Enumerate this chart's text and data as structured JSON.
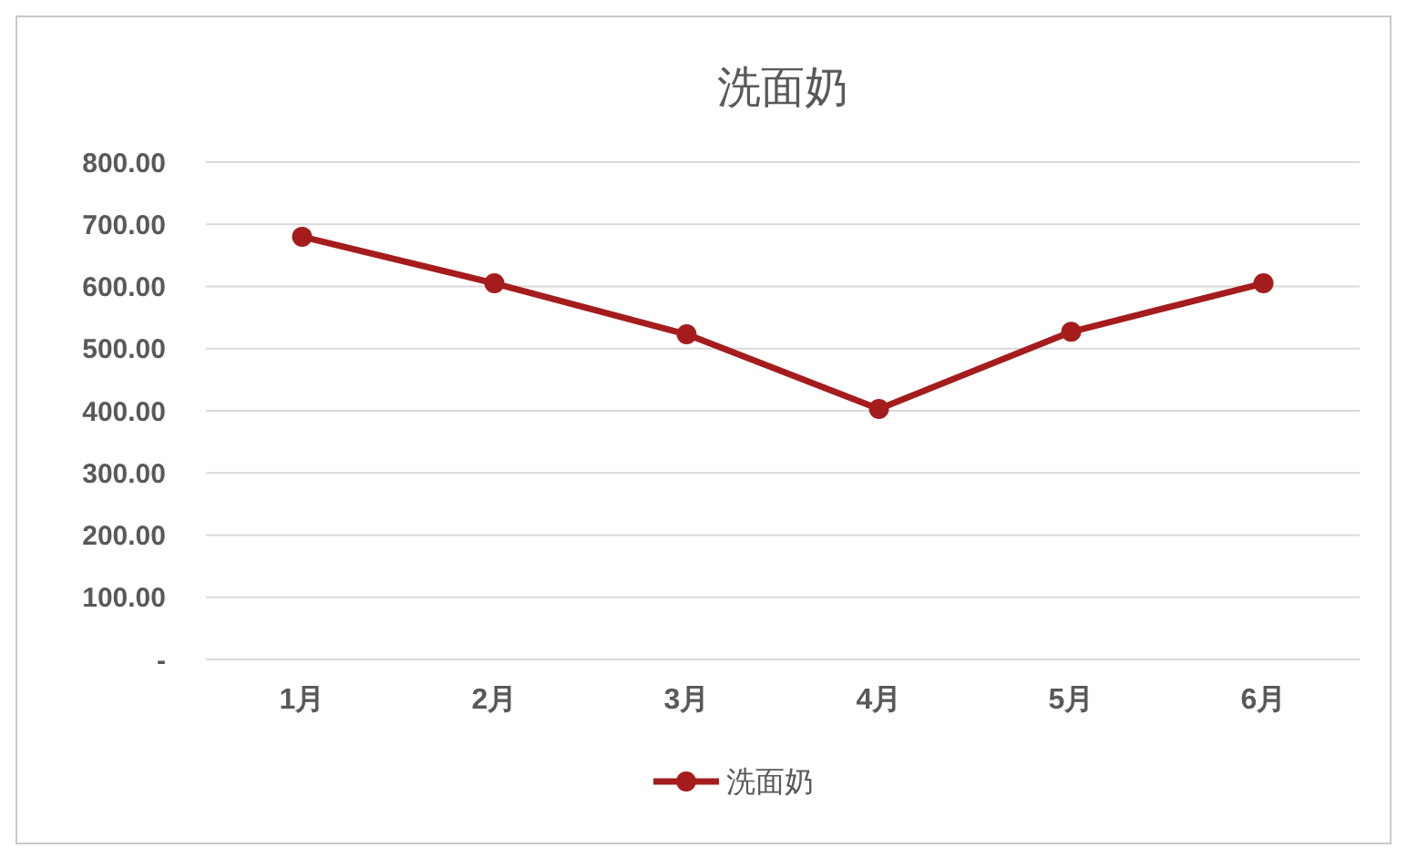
{
  "chart_data": {
    "type": "line",
    "title": "洗面奶",
    "categories": [
      "1月",
      "2月",
      "3月",
      "4月",
      "5月",
      "6月"
    ],
    "series": [
      {
        "name": "洗面奶",
        "color": "#a51c1c",
        "values": [
          680,
          605,
          523,
          403,
          527,
          605
        ]
      }
    ],
    "ylim": [
      0,
      800
    ],
    "yticks": [
      {
        "value": 0,
        "label": "-"
      },
      {
        "value": 100,
        "label": "100.00"
      },
      {
        "value": 200,
        "label": "200.00"
      },
      {
        "value": 300,
        "label": "300.00"
      },
      {
        "value": 400,
        "label": "400.00"
      },
      {
        "value": 500,
        "label": "500.00"
      },
      {
        "value": 600,
        "label": "600.00"
      },
      {
        "value": 700,
        "label": "700.00"
      },
      {
        "value": 800,
        "label": "800.00"
      }
    ],
    "grid": "y",
    "legend": "bottom",
    "marker": "circle",
    "line_style": "solid"
  }
}
